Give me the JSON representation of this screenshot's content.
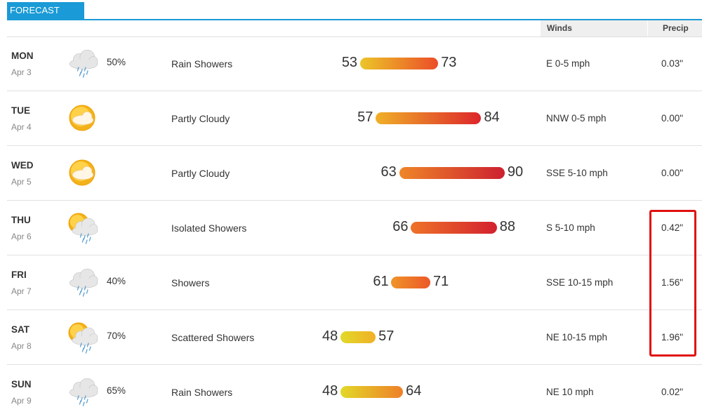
{
  "tab": {
    "label": "FORECAST",
    "color": "#1a9ad6"
  },
  "columns": {
    "winds": "Winds",
    "precip": "Precip"
  },
  "days": [
    {
      "day": "MON",
      "date": "Apr 3",
      "icon": "rain-cloud-icon",
      "pop": "50%",
      "condition": "Rain Showers",
      "low": "53",
      "high": "73",
      "winds": "E 0-5 mph",
      "precip": "0.03\""
    },
    {
      "day": "TUE",
      "date": "Apr 4",
      "icon": "partly-sunny-icon",
      "pop": "",
      "condition": "Partly Cloudy",
      "low": "57",
      "high": "84",
      "winds": "NNW 0-5 mph",
      "precip": "0.00\""
    },
    {
      "day": "WED",
      "date": "Apr 5",
      "icon": "partly-sunny-icon",
      "pop": "",
      "condition": "Partly Cloudy",
      "low": "63",
      "high": "90",
      "winds": "SSE 5-10 mph",
      "precip": "0.00\""
    },
    {
      "day": "THU",
      "date": "Apr 6",
      "icon": "sun-rain-cloud-icon",
      "pop": "",
      "condition": "Isolated Showers",
      "low": "66",
      "high": "88",
      "winds": "S 5-10 mph",
      "precip": "0.42\""
    },
    {
      "day": "FRI",
      "date": "Apr 7",
      "icon": "rain-cloud-icon",
      "pop": "40%",
      "condition": "Showers",
      "low": "61",
      "high": "71",
      "winds": "SSE 10-15 mph",
      "precip": "1.56\""
    },
    {
      "day": "SAT",
      "date": "Apr 8",
      "icon": "sun-rain-cloud-icon",
      "pop": "70%",
      "condition": "Scattered Showers",
      "low": "48",
      "high": "57",
      "winds": "NE 10-15 mph",
      "precip": "1.96\""
    },
    {
      "day": "SUN",
      "date": "Apr 9",
      "icon": "rain-cloud-icon",
      "pop": "65%",
      "condition": "Rain Showers",
      "low": "48",
      "high": "64",
      "winds": "NE 10 mph",
      "precip": "0.02\""
    }
  ],
  "highlight": {
    "color": "#e01010"
  }
}
